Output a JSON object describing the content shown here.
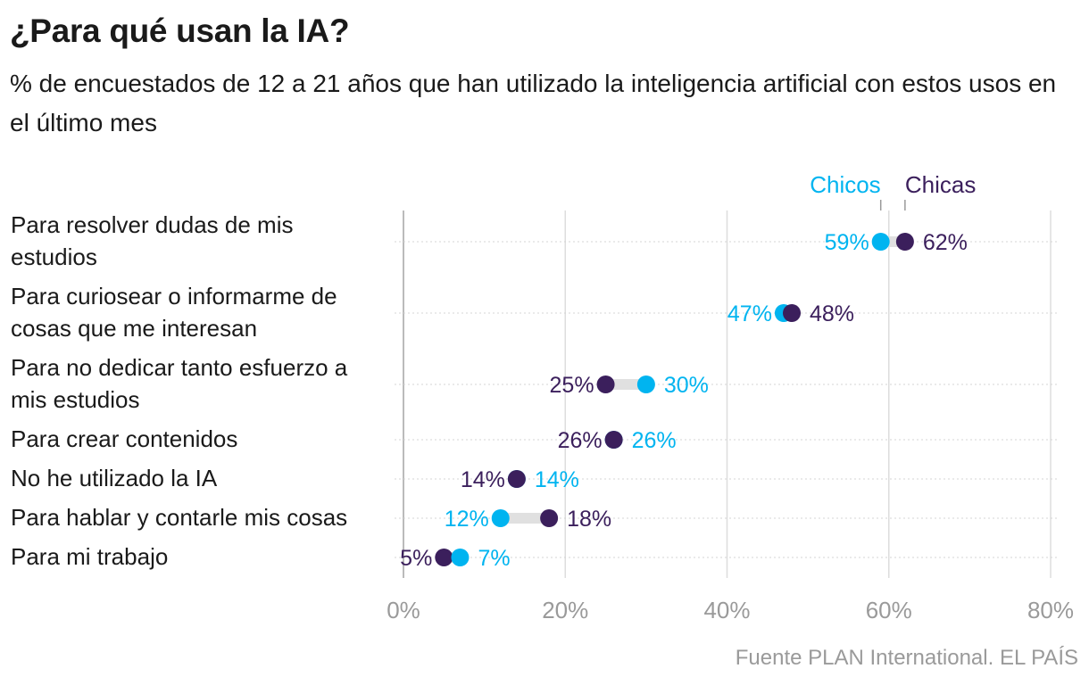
{
  "title": "¿Para qué usan la IA?",
  "subtitle": "% de encuestados de 12 a 21 años que han utilizado la inteligencia artificial con estos usos en el último mes",
  "source": "Fuente PLAN International. EL PAÍS",
  "colors": {
    "chicos": "#00b4f0",
    "chicas": "#3b1f5c",
    "grid": "#dddddd",
    "connector": "#e0e0e0",
    "axis": "#bbbbbb",
    "tick": "#9a9a9a"
  },
  "chart_data": {
    "type": "scatter",
    "subtype": "dumbbell",
    "title": "¿Para qué usan la IA?",
    "xlim": [
      0,
      80
    ],
    "x_ticks": [
      0,
      20,
      40,
      60,
      80
    ],
    "x_tick_labels": [
      "0%",
      "20%",
      "40%",
      "60%",
      "80%"
    ],
    "legend": [
      "Chicos",
      "Chicas"
    ],
    "categories": [
      [
        "Para resolver dudas de mis",
        "estudios"
      ],
      [
        "Para curiosear o informarme de",
        "cosas que me interesan"
      ],
      [
        "Para no dedicar tanto esfuerzo a",
        "mis estudios"
      ],
      [
        "Para crear contenidos"
      ],
      [
        "No he utilizado la IA"
      ],
      [
        "Para hablar y contarle mis cosas"
      ],
      [
        "Para mi trabajo"
      ]
    ],
    "series": [
      {
        "name": "Chicos",
        "values": [
          59,
          47,
          30,
          26,
          14,
          12,
          7
        ],
        "labels": [
          "59%",
          "47%",
          "30%",
          "26%",
          "14%",
          "12%",
          "7%"
        ]
      },
      {
        "name": "Chicas",
        "values": [
          62,
          48,
          25,
          26,
          14,
          18,
          5
        ],
        "labels": [
          "62%",
          "48%",
          "25%",
          "26%",
          "14%",
          "18%",
          "5%"
        ]
      }
    ]
  }
}
